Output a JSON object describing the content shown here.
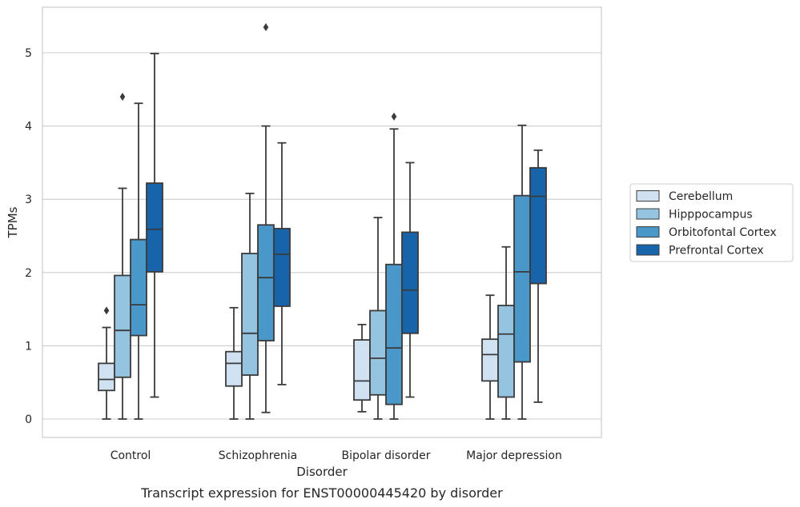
{
  "chart_data": {
    "type": "boxplot",
    "caption": "Transcript expression for ENST00000445420 by disorder",
    "xlabel": "Disorder",
    "ylabel": "TPMs",
    "ylim": [
      -0.25,
      5.6
    ],
    "yticks": [
      0,
      1,
      2,
      3,
      4,
      5
    ],
    "grid": "horizontal",
    "legend_position": "right",
    "categories": [
      "Control",
      "Schizophrenia",
      "Bipolar disorder",
      "Major depression"
    ],
    "series": [
      {
        "name": "Cerebellum",
        "color": "#d0e1f2",
        "boxes": [
          {
            "whisker_low": 0.0,
            "q1": 0.39,
            "median": 0.54,
            "q3": 0.76,
            "whisker_high": 1.25,
            "outliers": [
              1.48
            ]
          },
          {
            "whisker_low": 0.0,
            "q1": 0.45,
            "median": 0.76,
            "q3": 0.92,
            "whisker_high": 1.52,
            "outliers": []
          },
          {
            "whisker_low": 0.1,
            "q1": 0.26,
            "median": 0.52,
            "q3": 1.08,
            "whisker_high": 1.29,
            "outliers": []
          },
          {
            "whisker_low": 0.0,
            "q1": 0.52,
            "median": 0.88,
            "q3": 1.09,
            "whisker_high": 1.69,
            "outliers": []
          }
        ]
      },
      {
        "name": "Hipppocampus",
        "color": "#94c4df",
        "boxes": [
          {
            "whisker_low": 0.0,
            "q1": 0.57,
            "median": 1.21,
            "q3": 1.96,
            "whisker_high": 3.15,
            "outliers": [
              4.4
            ]
          },
          {
            "whisker_low": 0.0,
            "q1": 0.6,
            "median": 1.17,
            "q3": 2.26,
            "whisker_high": 3.08,
            "outliers": []
          },
          {
            "whisker_low": 0.0,
            "q1": 0.33,
            "median": 0.83,
            "q3": 1.48,
            "whisker_high": 2.75,
            "outliers": []
          },
          {
            "whisker_low": 0.0,
            "q1": 0.3,
            "median": 1.16,
            "q3": 1.55,
            "whisker_high": 2.35,
            "outliers": []
          }
        ]
      },
      {
        "name": "Orbitofontal Cortex",
        "color": "#4a98c9",
        "boxes": [
          {
            "whisker_low": 0.0,
            "q1": 1.14,
            "median": 1.56,
            "q3": 2.45,
            "whisker_high": 4.31,
            "outliers": []
          },
          {
            "whisker_low": 0.09,
            "q1": 1.07,
            "median": 1.93,
            "q3": 2.65,
            "whisker_high": 4.0,
            "outliers": [
              5.35
            ]
          },
          {
            "whisker_low": 0.0,
            "q1": 0.2,
            "median": 0.97,
            "q3": 2.11,
            "whisker_high": 3.96,
            "outliers": [
              4.13
            ]
          },
          {
            "whisker_low": 0.0,
            "q1": 0.78,
            "median": 2.01,
            "q3": 3.05,
            "whisker_high": 4.01,
            "outliers": []
          }
        ]
      },
      {
        "name": "Prefrontal Cortex",
        "color": "#1764ab",
        "boxes": [
          {
            "whisker_low": 0.3,
            "q1": 2.01,
            "median": 2.59,
            "q3": 3.22,
            "whisker_high": 4.99,
            "outliers": []
          },
          {
            "whisker_low": 0.47,
            "q1": 1.54,
            "median": 2.25,
            "q3": 2.6,
            "whisker_high": 3.77,
            "outliers": []
          },
          {
            "whisker_low": 0.3,
            "q1": 1.17,
            "median": 1.76,
            "q3": 2.55,
            "whisker_high": 3.5,
            "outliers": []
          },
          {
            "whisker_low": 0.23,
            "q1": 1.85,
            "median": 3.04,
            "q3": 3.43,
            "whisker_high": 3.67,
            "outliers": []
          }
        ]
      }
    ]
  }
}
